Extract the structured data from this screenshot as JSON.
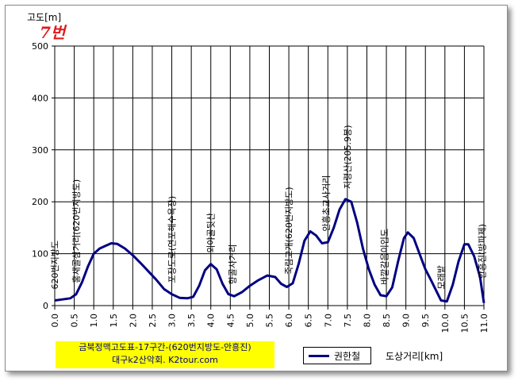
{
  "chart_data": {
    "type": "line",
    "title": "금북정맥고도표-17구간-(620번지방도-안흥진)",
    "subtitle": "대구k2산악회. K2tour.com",
    "ylabel": "고도[m]",
    "xlabel": "도상거리[km]",
    "xlim": [
      0,
      11
    ],
    "ylim": [
      0,
      500
    ],
    "xticks": [
      "0.0",
      "0.5",
      "1.0",
      "1.5",
      "2.0",
      "2.5",
      "3.0",
      "3.5",
      "4.0",
      "4.5",
      "5.0",
      "5.5",
      "6.0",
      "6.5",
      "7.0",
      "7.5",
      "8.0",
      "8.5",
      "9.0",
      "9.5",
      "10.0",
      "10.5",
      "11.0"
    ],
    "yticks": [
      "0",
      "100",
      "200",
      "300",
      "400",
      "500"
    ],
    "grid": "vertical-and-horizontal",
    "legend_position": "bottom",
    "series": [
      {
        "name": "권한철",
        "color": "#000080",
        "points": [
          [
            0.0,
            10
          ],
          [
            0.2,
            12
          ],
          [
            0.4,
            14
          ],
          [
            0.55,
            22
          ],
          [
            0.7,
            45
          ],
          [
            0.85,
            75
          ],
          [
            1.0,
            100
          ],
          [
            1.15,
            110
          ],
          [
            1.3,
            115
          ],
          [
            1.45,
            120
          ],
          [
            1.6,
            119
          ],
          [
            1.8,
            110
          ],
          [
            2.0,
            97
          ],
          [
            2.2,
            82
          ],
          [
            2.4,
            66
          ],
          [
            2.6,
            50
          ],
          [
            2.8,
            32
          ],
          [
            3.0,
            22
          ],
          [
            3.2,
            15
          ],
          [
            3.4,
            14
          ],
          [
            3.55,
            17
          ],
          [
            3.7,
            38
          ],
          [
            3.85,
            68
          ],
          [
            4.0,
            80
          ],
          [
            4.15,
            70
          ],
          [
            4.3,
            42
          ],
          [
            4.45,
            22
          ],
          [
            4.6,
            18
          ],
          [
            4.8,
            26
          ],
          [
            5.0,
            38
          ],
          [
            5.2,
            48
          ],
          [
            5.45,
            58
          ],
          [
            5.65,
            55
          ],
          [
            5.8,
            42
          ],
          [
            5.95,
            36
          ],
          [
            6.1,
            43
          ],
          [
            6.25,
            80
          ],
          [
            6.4,
            125
          ],
          [
            6.55,
            143
          ],
          [
            6.7,
            135
          ],
          [
            6.85,
            120
          ],
          [
            7.0,
            122
          ],
          [
            7.15,
            150
          ],
          [
            7.3,
            185
          ],
          [
            7.45,
            205
          ],
          [
            7.6,
            200
          ],
          [
            7.75,
            160
          ],
          [
            7.9,
            110
          ],
          [
            8.05,
            70
          ],
          [
            8.2,
            40
          ],
          [
            8.35,
            20
          ],
          [
            8.5,
            18
          ],
          [
            8.65,
            35
          ],
          [
            8.8,
            85
          ],
          [
            8.95,
            130
          ],
          [
            9.05,
            141
          ],
          [
            9.2,
            130
          ],
          [
            9.35,
            100
          ],
          [
            9.5,
            70
          ],
          [
            9.65,
            48
          ],
          [
            9.8,
            25
          ],
          [
            9.9,
            10
          ],
          [
            10.05,
            8
          ],
          [
            10.2,
            40
          ],
          [
            10.35,
            85
          ],
          [
            10.5,
            118
          ],
          [
            10.6,
            118
          ],
          [
            10.75,
            95
          ],
          [
            10.9,
            55
          ],
          [
            11.0,
            5
          ]
        ]
      }
    ],
    "annotations": [
      {
        "text": "620번지방도",
        "x": 0.0
      },
      {
        "text": "홍새골삼거리(620번지방도)",
        "x": 0.55
      },
      {
        "text": "포장도로(연포해수욕장)",
        "x": 3.0
      },
      {
        "text": "외야골뒷산",
        "x": 4.0
      },
      {
        "text": "향골사거리",
        "x": 4.55
      },
      {
        "text": "죽림고개(620번지방도)",
        "x": 6.0
      },
      {
        "text": "안흥초교사거리",
        "x": 6.95
      },
      {
        "text": "지령산(205.9봉)",
        "x": 7.5
      },
      {
        "text": "바깥갈음이입도",
        "x": 8.45
      },
      {
        "text": "모래밭",
        "x": 9.9
      },
      {
        "text": "안흥진(방파제)",
        "x": 10.95
      }
    ]
  },
  "note": "7번"
}
